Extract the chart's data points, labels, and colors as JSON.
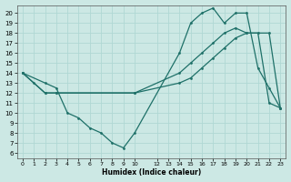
{
  "xlabel": "Humidex (Indice chaleur)",
  "bg_color": "#cce8e4",
  "grid_color": "#b0d8d4",
  "line_color": "#1e7068",
  "xlim": [
    -0.5,
    23.5
  ],
  "ylim": [
    5.5,
    20.8
  ],
  "xticks": [
    0,
    1,
    2,
    3,
    4,
    5,
    6,
    7,
    8,
    9,
    10,
    12,
    13,
    14,
    15,
    16,
    17,
    18,
    19,
    20,
    21,
    22,
    23
  ],
  "yticks": [
    6,
    7,
    8,
    9,
    10,
    11,
    12,
    13,
    14,
    15,
    16,
    17,
    18,
    19,
    20
  ],
  "line1_x": [
    0,
    1,
    2,
    3,
    10,
    14,
    15,
    16,
    17,
    18,
    19,
    20,
    22,
    23
  ],
  "line1_y": [
    14,
    13,
    12,
    12,
    12,
    14,
    15,
    16,
    17,
    18,
    18.5,
    18,
    18,
    10.5
  ],
  "line2_x": [
    0,
    2,
    3,
    4,
    5,
    6,
    7,
    8,
    9,
    10,
    14,
    15,
    16,
    17,
    18,
    19,
    20,
    21,
    22,
    23
  ],
  "line2_y": [
    14,
    13,
    12.5,
    10,
    9.5,
    8.5,
    8,
    7,
    6.5,
    8,
    16,
    19,
    20,
    20.5,
    19,
    20,
    20,
    14.5,
    12.5,
    10.5
  ],
  "line3_x": [
    0,
    2,
    3,
    10,
    14,
    15,
    16,
    17,
    18,
    19,
    20,
    21,
    22,
    23
  ],
  "line3_y": [
    14,
    12,
    12,
    12,
    13,
    13.5,
    14.5,
    15.5,
    16.5,
    17.5,
    18,
    18,
    11,
    10.5
  ]
}
